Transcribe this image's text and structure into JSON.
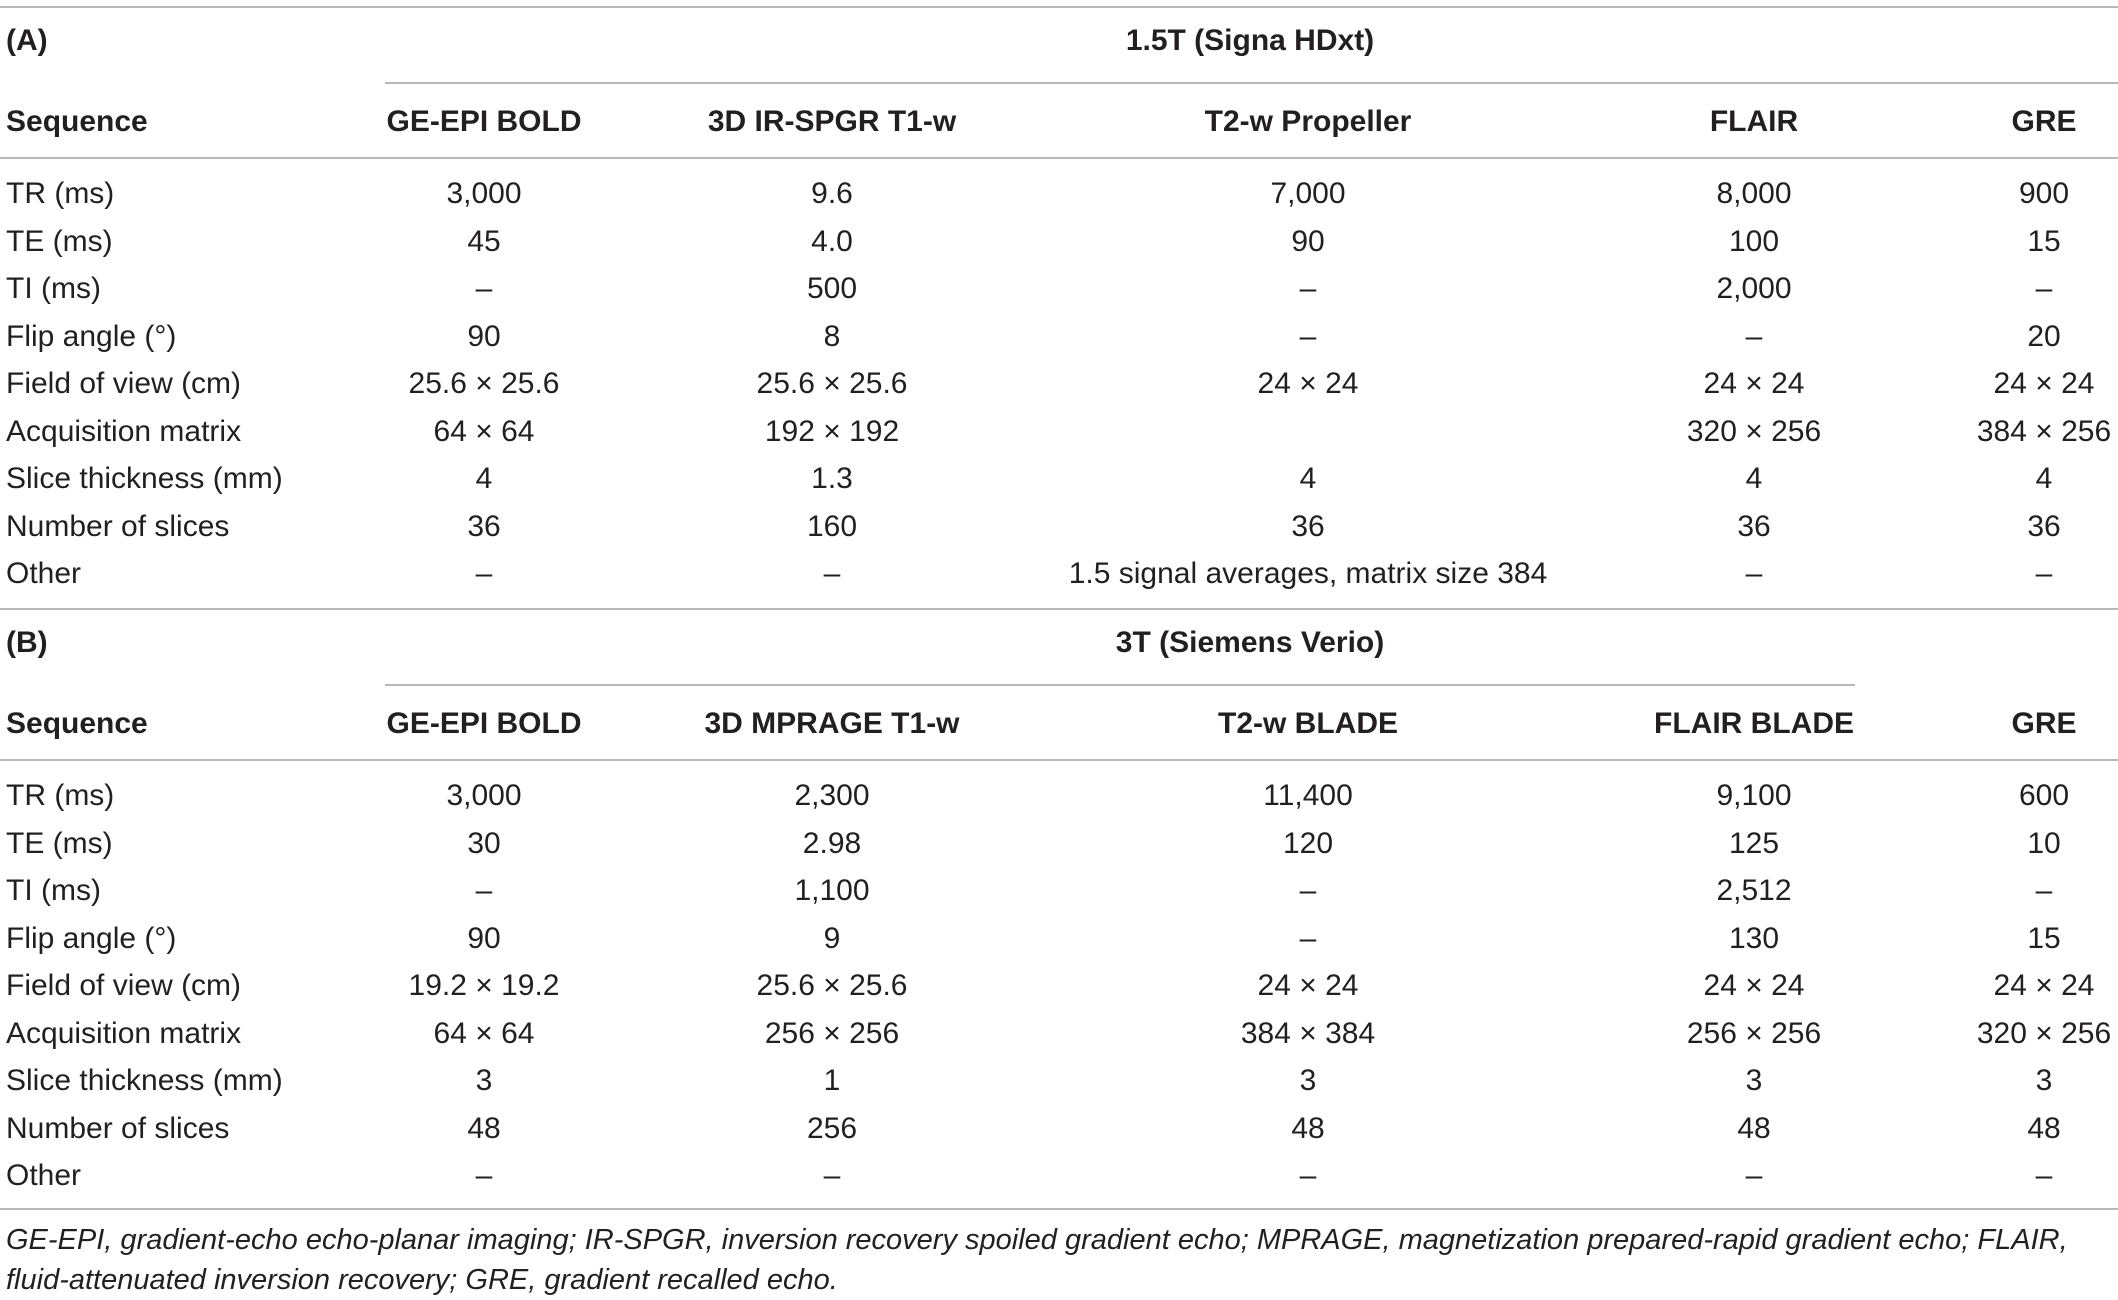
{
  "footnote": "GE-EPI, gradient-echo echo-planar imaging; IR-SPGR, inversion recovery spoiled gradient echo; MPRAGE, magnetization prepared-rapid gradient echo; FLAIR, fluid-attenuated inversion recovery; GRE, gradient recalled echo.",
  "sections": [
    {
      "id": "A",
      "label": "(A)",
      "scanner": "1.5T (Signa HDxt)",
      "header_label": "Sequence",
      "columns": [
        "GE-EPI BOLD",
        "3D IR-SPGR T1-w",
        "T2-w Propeller",
        "FLAIR",
        "GRE"
      ],
      "rows": [
        {
          "param": "TR (ms)",
          "values": [
            "3,000",
            "9.6",
            "7,000",
            "8,000",
            "900"
          ]
        },
        {
          "param": "TE (ms)",
          "values": [
            "45",
            "4.0",
            "90",
            "100",
            "15"
          ]
        },
        {
          "param": "TI (ms)",
          "values": [
            "–",
            "500",
            "–",
            "2,000",
            "–"
          ]
        },
        {
          "param": "Flip angle (°)",
          "values": [
            "90",
            "8",
            "–",
            "–",
            "20"
          ]
        },
        {
          "param": "Field of view (cm)",
          "values": [
            "25.6 × 25.6",
            "25.6 × 25.6",
            "24 × 24",
            "24 × 24",
            "24 × 24"
          ]
        },
        {
          "param": "Acquisition matrix",
          "values": [
            "64 × 64",
            "192 × 192",
            "",
            "320 × 256",
            "384 × 256"
          ]
        },
        {
          "param": "Slice thickness (mm)",
          "values": [
            "4",
            "1.3",
            "4",
            "4",
            "4"
          ]
        },
        {
          "param": "Number of slices",
          "values": [
            "36",
            "160",
            "36",
            "36",
            "36"
          ]
        },
        {
          "param": "Other",
          "values": [
            "–",
            "–",
            "1.5 signal averages, matrix size 384",
            "–",
            "–"
          ]
        }
      ]
    },
    {
      "id": "B",
      "label": "(B)",
      "scanner": "3T (Siemens Verio)",
      "header_label": "Sequence",
      "columns": [
        "GE-EPI BOLD",
        "3D MPRAGE T1-w",
        "T2-w BLADE",
        "FLAIR BLADE",
        "GRE"
      ],
      "rows": [
        {
          "param": "TR (ms)",
          "values": [
            "3,000",
            "2,300",
            "11,400",
            "9,100",
            "600"
          ]
        },
        {
          "param": "TE (ms)",
          "values": [
            "30",
            "2.98",
            "120",
            "125",
            "10"
          ]
        },
        {
          "param": "TI (ms)",
          "values": [
            "–",
            "1,100",
            "–",
            "2,512",
            "–"
          ]
        },
        {
          "param": "Flip angle (°)",
          "values": [
            "90",
            "9",
            "–",
            "130",
            "15"
          ]
        },
        {
          "param": "Field of view (cm)",
          "values": [
            "19.2 × 19.2",
            "25.6 × 25.6",
            "24 × 24",
            "24 × 24",
            "24 × 24"
          ]
        },
        {
          "param": "Acquisition matrix",
          "values": [
            "64 × 64",
            "256 × 256",
            "384 × 384",
            "256 × 256",
            "320 × 256"
          ]
        },
        {
          "param": "Slice thickness (mm)",
          "values": [
            "3",
            "1",
            "3",
            "3",
            "3"
          ]
        },
        {
          "param": "Number of slices",
          "values": [
            "48",
            "256",
            "48",
            "48",
            "48"
          ]
        },
        {
          "param": "Other",
          "values": [
            "–",
            "–",
            "–",
            "–",
            "–"
          ]
        }
      ]
    }
  ]
}
